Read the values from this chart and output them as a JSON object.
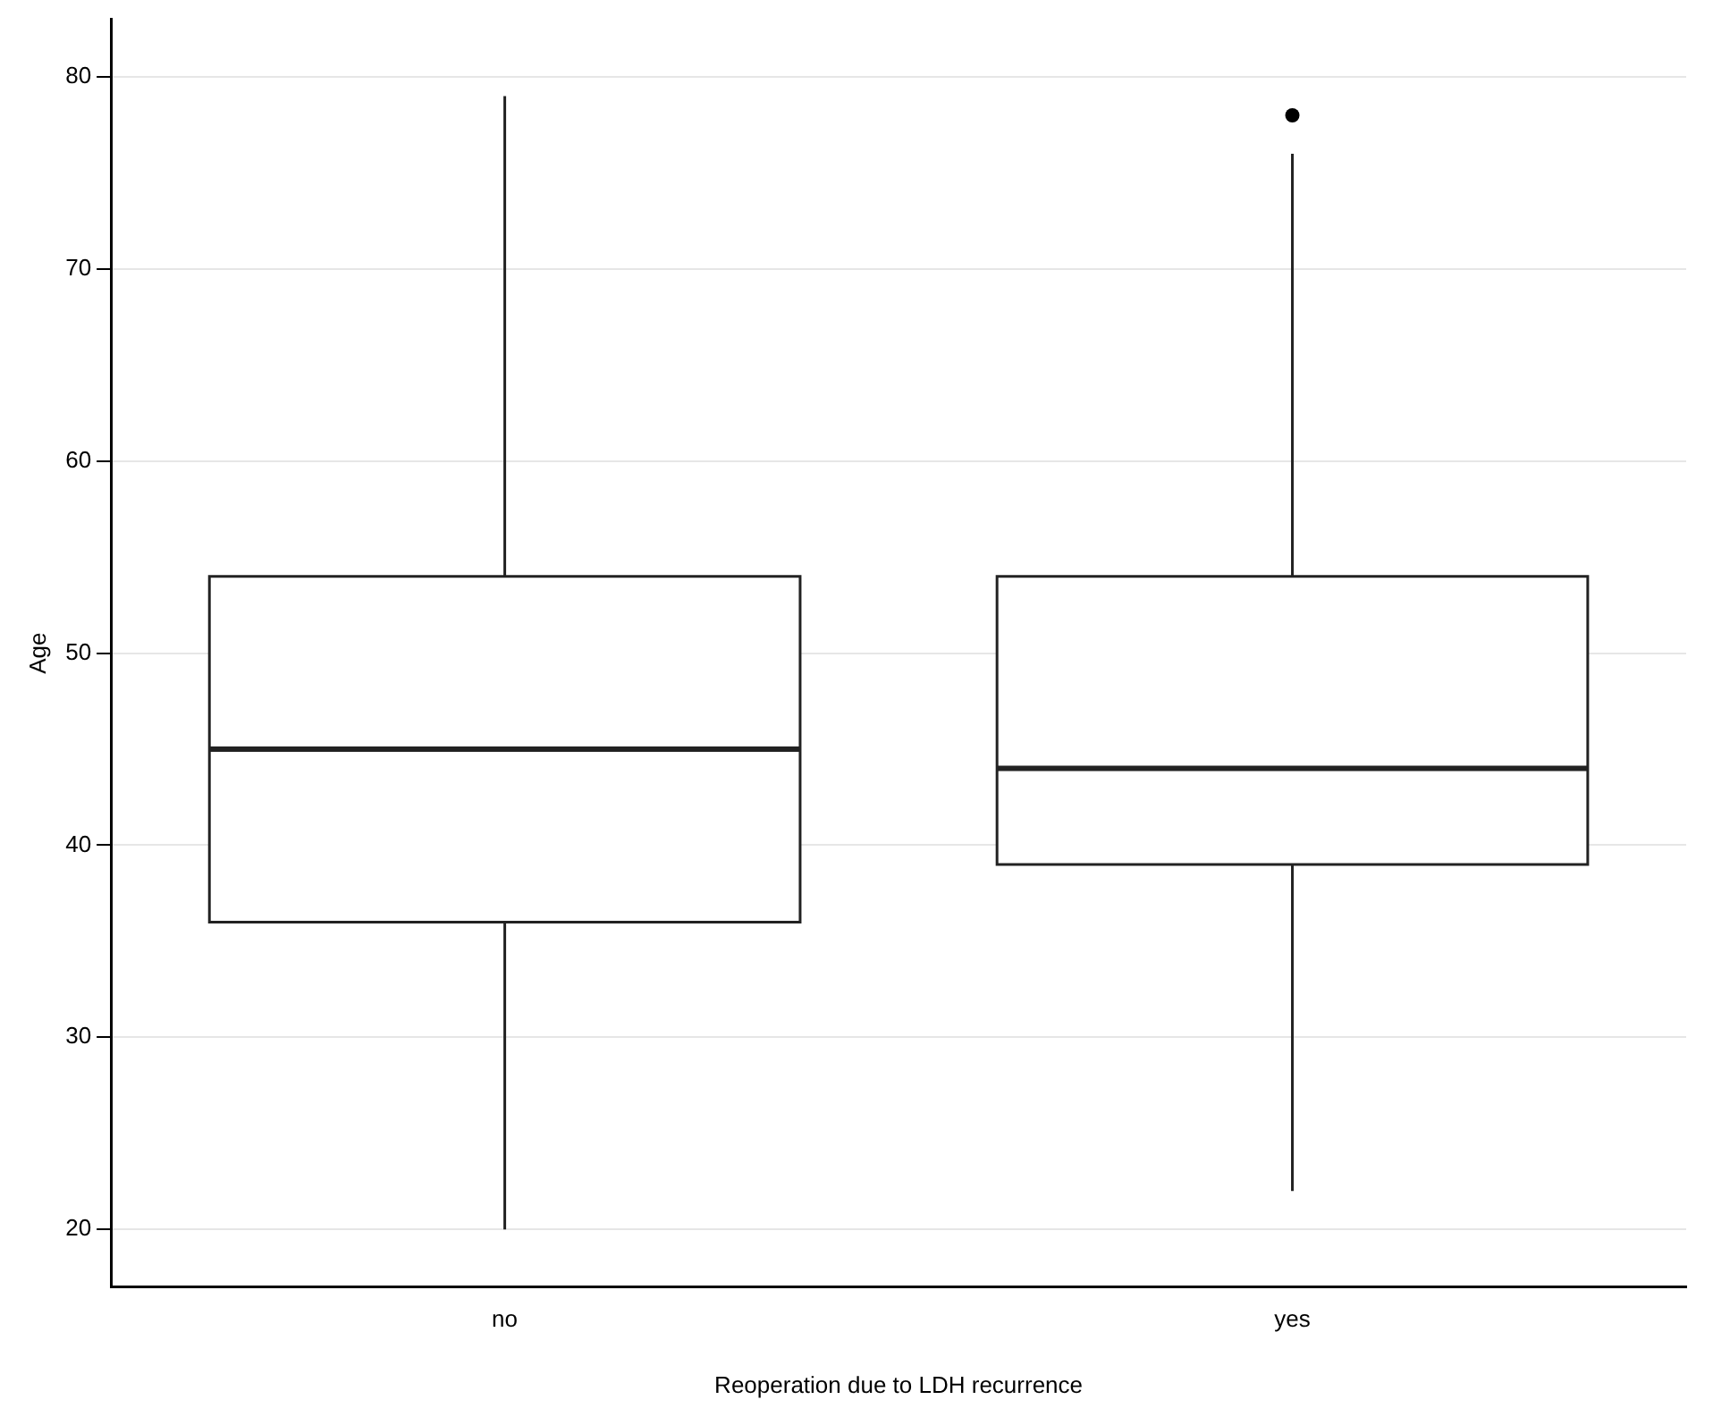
{
  "chart_data": {
    "type": "box",
    "xlabel": "Reoperation due to LDH recurrence",
    "ylabel": "Age",
    "categories": [
      "no",
      "yes"
    ],
    "boxes": [
      {
        "low": 20,
        "q1": 36,
        "median": 45,
        "q3": 54,
        "high": 79
      },
      {
        "low": 22,
        "q1": 39,
        "median": 44,
        "q3": 54,
        "high": 76,
        "outliers": [
          78
        ]
      }
    ],
    "ylim": [
      17,
      83
    ],
    "yticks": [
      20,
      30,
      40,
      50,
      60,
      70,
      80
    ],
    "grid": "y",
    "legend": false
  }
}
